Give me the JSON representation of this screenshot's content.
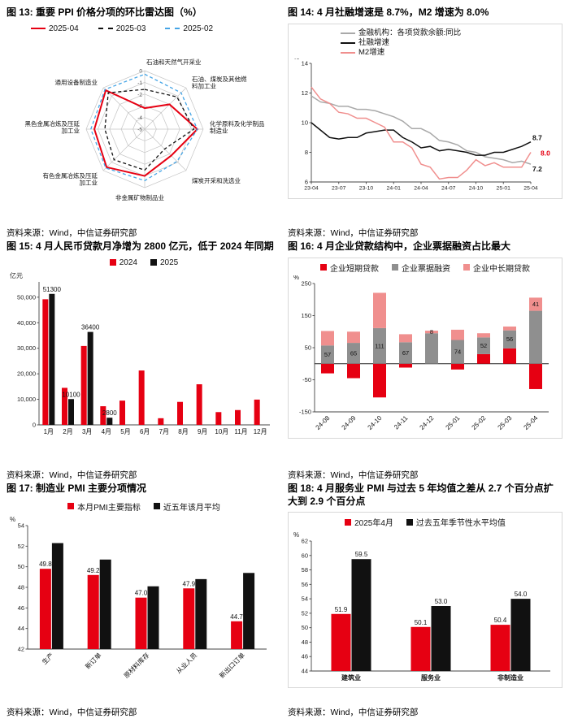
{
  "colors": {
    "red": "#e60012",
    "black": "#111111",
    "gray": "#a9a9a9",
    "graybar": "#8f8f8f",
    "pink": "#f08f8e",
    "blue": "#45a5e6",
    "axis": "#444444",
    "grid": "#c4c4c4"
  },
  "figures": {
    "fig13": {
      "title": "图 13: 重要 PPI 价格分项的环比雷达图（%）",
      "source": "资料来源：Wind，中信证券研究部"
    },
    "fig14": {
      "title": "图 14: 4 月社融增速是 8.7%，M2 增速为 8.0%",
      "source": "资料来源：Wind，中信证券研究部"
    },
    "fig15": {
      "title": "图 15: 4 月人民币贷款月净增为 2800 亿元，低于 2024 年同期",
      "source": "资料来源：Wind，中信证券研究部"
    },
    "fig16": {
      "title": "图 16: 4 月企业贷款结构中，企业票据融资占比最大",
      "source": "资料来源：Wind，中信证券研究部"
    },
    "fig17": {
      "title": "图 17: 制造业 PMI 主要分项情况",
      "source": "资料来源：Wind，中信证券研究部"
    },
    "fig18": {
      "title": "图 18: 4 月服务业 PMI 与过去 5 年均值之差从 2.7 个百分点扩大到 2.9 个百分点",
      "source": "资料来源：Wind，中信证券研究部"
    }
  },
  "chart_data": [
    {
      "figure": "fig13",
      "type": "radar",
      "title": "重要 PPI 价格分项的环比雷达图（%）",
      "legend_marker": "line",
      "categories": [
        "石油和天然气开采业",
        "石油、煤炭及其他燃料加工业",
        "化学原料及化学制品制造业",
        "煤炭开采和洗选业",
        "非金属矿物制品业",
        "有色金属冶炼及压延加工业",
        "黑色金属冶炼及压延加工业",
        "通用设备制造业"
      ],
      "category_lines": [
        [
          "石油和天然气开采业"
        ],
        [
          "石油、煤炭及其他燃",
          "料加工业"
        ],
        [
          "化学原料及化学制品",
          "制造业"
        ],
        [
          "煤炭开采和洗选业"
        ],
        [
          "非金属矿物制品业"
        ],
        [
          "有色金属冶炼及压延",
          "加工业"
        ],
        [
          "黑色金属冶炼及压延",
          "加工业"
        ],
        [
          "通用设备制造业"
        ]
      ],
      "ring_values": [
        0,
        -1,
        -2,
        -3,
        -4,
        -5
      ],
      "rmin": -5,
      "rmax": 0,
      "series": [
        {
          "name": "2025-04",
          "color": "red",
          "dash": "solid",
          "values": [
            -3.2,
            -2.0,
            -0.5,
            -1.8,
            -1.0,
            -0.4,
            -0.7,
            -0.3
          ]
        },
        {
          "name": "2025-03",
          "color": "black",
          "dash": "dash",
          "values": [
            -1.6,
            -1.1,
            -0.8,
            -2.6,
            -1.5,
            -1.3,
            -1.6,
            -0.6
          ]
        },
        {
          "name": "2025-02",
          "color": "blue",
          "dash": "dash",
          "values": [
            -0.3,
            -0.6,
            -0.5,
            -1.1,
            -0.6,
            -0.3,
            -0.4,
            -0.2
          ]
        }
      ]
    },
    {
      "figure": "fig14",
      "type": "line",
      "title": "4 月社融增速是 8.7%，M2 增速为 8.0%",
      "legend_marker": "line",
      "unit": "%",
      "n_points": 25,
      "x_ticks": [
        "23-04",
        "23-07",
        "23-10",
        "24-01",
        "24-04",
        "24-07",
        "24-10",
        "25-01",
        "25-04"
      ],
      "ylim": [
        6,
        14
      ],
      "y_ticks": [
        6,
        8,
        10,
        12,
        14
      ],
      "series": [
        {
          "name": "金融机构：各项贷款余额:同比",
          "color": "gray",
          "values": [
            11.8,
            11.4,
            11.3,
            11.1,
            11.1,
            10.9,
            10.9,
            10.8,
            10.6,
            10.4,
            10.1,
            9.6,
            9.6,
            9.3,
            8.8,
            8.7,
            8.5,
            8.1,
            8.0,
            7.7,
            7.6,
            7.5,
            7.3,
            7.4,
            7.2
          ],
          "end_label": {
            "text": "7.2",
            "dx": 2,
            "dy": 9,
            "color": "black"
          }
        },
        {
          "name": "社融增速",
          "color": "black",
          "values": [
            10.0,
            9.5,
            9.0,
            8.9,
            9.0,
            9.0,
            9.3,
            9.4,
            9.5,
            9.5,
            9.0,
            8.7,
            8.3,
            8.4,
            8.1,
            8.2,
            8.1,
            8.0,
            7.8,
            7.8,
            8.0,
            8.0,
            8.2,
            8.4,
            8.7
          ],
          "end_label": {
            "text": "8.7",
            "dx": 2,
            "dy": -2,
            "color": "black"
          }
        },
        {
          "name": "M2增速",
          "color": "pink",
          "values": [
            12.4,
            11.6,
            11.3,
            10.7,
            10.6,
            10.3,
            10.3,
            10.0,
            9.7,
            8.7,
            8.7,
            8.3,
            7.2,
            7.0,
            6.2,
            6.3,
            6.3,
            6.8,
            7.5,
            7.1,
            7.3,
            7.0,
            7.0,
            7.0,
            8.0
          ],
          "end_label": {
            "text": "8.0",
            "dx": 12,
            "dy": 4,
            "color": "red"
          }
        }
      ]
    },
    {
      "figure": "fig15",
      "type": "bar",
      "title": "4 月人民币贷款月净增为 2800 亿元，低于 2024 年同期",
      "legend_marker": "square",
      "unit": "亿元",
      "categories": [
        "1月",
        "2月",
        "3月",
        "4月",
        "5月",
        "6月",
        "7月",
        "8月",
        "9月",
        "10月",
        "11月",
        "12月"
      ],
      "ylim": [
        0,
        56000
      ],
      "y_ticks": [
        0,
        10000,
        20000,
        30000,
        40000,
        50000
      ],
      "y_tick_labels": [
        "0",
        "10,000",
        "20,000",
        "30,000",
        "40,000",
        "50,000"
      ],
      "series": [
        {
          "name": "2024",
          "color": "red",
          "values": [
            49200,
            14500,
            30900,
            7300,
            9500,
            21300,
            2600,
            9000,
            15900,
            5000,
            5800,
            9900
          ]
        },
        {
          "name": "2025",
          "color": "black",
          "values": [
            51300,
            10100,
            36400,
            2800,
            null,
            null,
            null,
            null,
            null,
            null,
            null,
            null
          ],
          "labels": [
            "51300",
            "10100",
            "36400",
            "2800",
            null,
            null,
            null,
            null,
            null,
            null,
            null,
            null
          ]
        }
      ]
    },
    {
      "figure": "fig16",
      "type": "stacked_bar",
      "title": "4 月企业贷款结构中，企业票据融资占比最大",
      "legend_marker": "square",
      "unit": "%",
      "categories": [
        "24-08",
        "24-09",
        "24-10",
        "24-11",
        "24-12",
        "25-01",
        "25-02",
        "25-03",
        "25-04"
      ],
      "ylim": [
        -150,
        250
      ],
      "y_ticks": [
        -150,
        -50,
        50,
        150,
        250
      ],
      "x_rotate": true,
      "series": [
        {
          "name": "企业短期贷款",
          "color": "red",
          "values": [
            -30,
            -45,
            -105,
            -12,
            0,
            -18,
            30,
            48,
            -79
          ]
        },
        {
          "name": "企业票据融资",
          "color": "graybar",
          "values": [
            57,
            65,
            111,
            67,
            95,
            74,
            52,
            56,
            165
          ]
        },
        {
          "name": "企业中长期贷款",
          "color": "pink",
          "values": [
            45,
            35,
            110,
            25,
            8,
            32,
            13,
            12,
            41
          ]
        }
      ],
      "bar_labels": [
        {
          "text": "57",
          "on": 1
        },
        {
          "text": "65",
          "on": 1
        },
        {
          "text": "111",
          "on": 1
        },
        {
          "text": "67",
          "on": 1
        },
        {
          "text": "8",
          "on": 2
        },
        {
          "text": "74",
          "on": 1
        },
        {
          "text": "52",
          "on": 1
        },
        {
          "text": "56",
          "on": 1
        },
        {
          "text": "41",
          "on": 2
        }
      ]
    },
    {
      "figure": "fig17",
      "type": "bar",
      "title": "制造业 PMI 主要分项情况",
      "legend_marker": "square",
      "unit": "%",
      "categories": [
        "生产",
        "新订单",
        "原材料库存",
        "从业人员",
        "新出口订单"
      ],
      "ylim": [
        42,
        54
      ],
      "y_ticks": [
        42,
        44,
        46,
        48,
        50,
        52,
        54
      ],
      "x_rotate": true,
      "series": [
        {
          "name": "本月PMI主要指标",
          "color": "red",
          "values": [
            49.8,
            49.2,
            47.0,
            47.9,
            44.7
          ],
          "labels": [
            "49.8",
            "49.2",
            "47.0",
            "47.9",
            "44.7"
          ]
        },
        {
          "name": "近五年该月平均",
          "color": "black",
          "values": [
            52.3,
            50.7,
            48.1,
            48.8,
            49.4
          ]
        }
      ]
    },
    {
      "figure": "fig18",
      "type": "bar",
      "title": "4 月服务业 PMI 与过去 5 年均值之差从 2.7 个百分点扩大到 2.9 个百分点",
      "legend_marker": "square",
      "unit": "%",
      "categories": [
        "建筑业",
        "服务业",
        "非制造业"
      ],
      "ylim": [
        44,
        62
      ],
      "y_ticks": [
        44,
        46,
        48,
        50,
        52,
        54,
        56,
        58,
        60,
        62
      ],
      "x_bold": true,
      "series": [
        {
          "name": "2025年4月",
          "color": "red",
          "values": [
            51.9,
            50.1,
            50.4
          ],
          "labels": [
            "51.9",
            "50.1",
            "50.4"
          ]
        },
        {
          "name": "过去五年季节性水平均值",
          "color": "black",
          "values": [
            59.5,
            53.0,
            54.0
          ],
          "labels": [
            "59.5",
            "53.0",
            "54.0"
          ]
        }
      ]
    }
  ]
}
